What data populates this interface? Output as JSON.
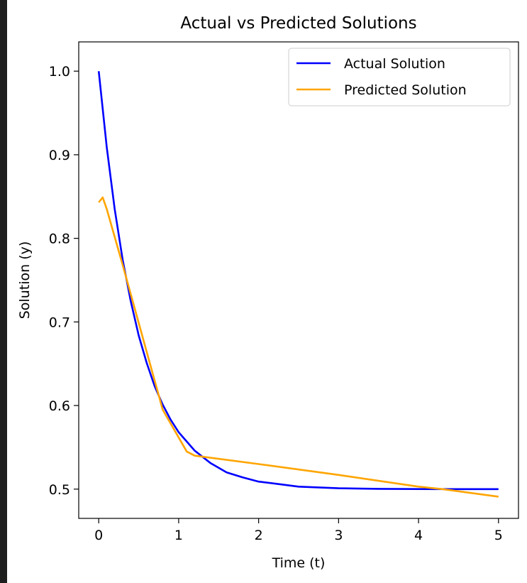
{
  "chart_data": {
    "type": "line",
    "title": "Actual vs Predicted Solutions",
    "xlabel": "Time (t)",
    "ylabel": "Solution (y)",
    "xlim": [
      -0.25,
      5.25
    ],
    "ylim": [
      0.465,
      1.035
    ],
    "xticks": [
      0,
      1,
      2,
      3,
      4,
      5
    ],
    "yticks": [
      0.5,
      0.6,
      0.7,
      0.8,
      0.9,
      1.0
    ],
    "xtick_labels": [
      "0",
      "1",
      "2",
      "3",
      "4",
      "5"
    ],
    "ytick_labels": [
      "0.5",
      "0.6",
      "0.7",
      "0.8",
      "0.9",
      "1.0"
    ],
    "grid": false,
    "legend_position": "top-right",
    "series": [
      {
        "name": "Actual Solution",
        "color": "#0000ff",
        "x": [
          0,
          0.1,
          0.2,
          0.3,
          0.4,
          0.5,
          0.6,
          0.7,
          0.8,
          0.9,
          1.0,
          1.2,
          1.4,
          1.6,
          1.8,
          2.0,
          2.25,
          2.5,
          2.75,
          3.0,
          3.5,
          4.0,
          4.5,
          5.0
        ],
        "y": [
          1.0,
          0.909,
          0.835,
          0.774,
          0.725,
          0.684,
          0.651,
          0.623,
          0.601,
          0.583,
          0.568,
          0.546,
          0.531,
          0.52,
          0.514,
          0.509,
          0.506,
          0.503,
          0.502,
          0.501,
          0.5003,
          0.5001,
          0.5,
          0.5
        ]
      },
      {
        "name": "Predicted Solution",
        "color": "#ffa500",
        "x": [
          0,
          0.05,
          0.1,
          0.3,
          0.5,
          0.8,
          1.1,
          1.2,
          2.0,
          3.0,
          4.0,
          4.3,
          5.0
        ],
        "y": [
          0.843,
          0.849,
          0.835,
          0.768,
          0.699,
          0.595,
          0.545,
          0.54,
          0.53,
          0.517,
          0.503,
          0.5,
          0.491
        ]
      }
    ]
  }
}
